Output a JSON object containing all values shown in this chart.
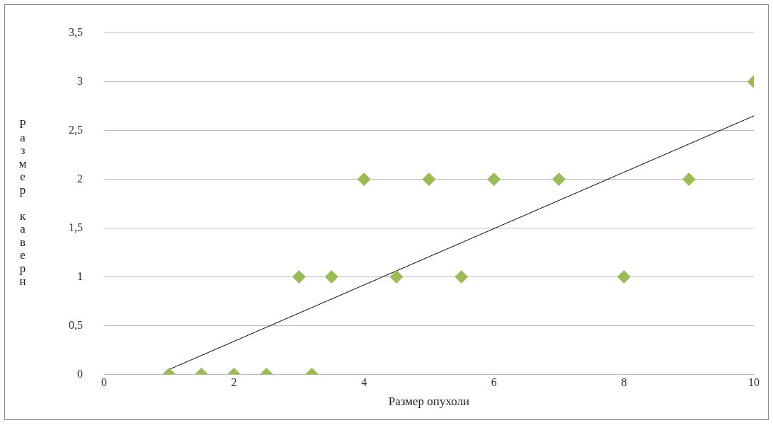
{
  "chart_data": {
    "type": "scatter",
    "xlabel": "Размер опухоли",
    "ylabel": "Размер каверн",
    "xlim": [
      0,
      10
    ],
    "xticks": [
      0,
      2,
      4,
      6,
      8,
      10
    ],
    "ylim": [
      0,
      3.5
    ],
    "yticks": [
      0,
      {
        "value": 0.5,
        "label": "0,5"
      },
      1,
      {
        "value": 1.5,
        "label": "1,5"
      },
      2,
      {
        "value": 2.5,
        "label": "2,5"
      },
      3,
      {
        "value": 3.5,
        "label": "3,5"
      }
    ],
    "grid": "y",
    "legend": false,
    "series": [
      {
        "marker": "diamond",
        "color": "#9bbb59",
        "x": [
          1,
          1.5,
          2,
          2.5,
          3.2,
          3,
          3.5,
          4,
          4.5,
          5,
          5.5,
          6,
          7,
          8,
          9,
          10
        ],
        "values": [
          0,
          0,
          0,
          0,
          0,
          1,
          1,
          2,
          1,
          2,
          1,
          2,
          2,
          1,
          2,
          3
        ]
      },
      {
        "type": "line",
        "marker": "none",
        "color": "#000000",
        "x": [
          1,
          10
        ],
        "values": [
          0.05,
          2.65
        ]
      }
    ]
  }
}
